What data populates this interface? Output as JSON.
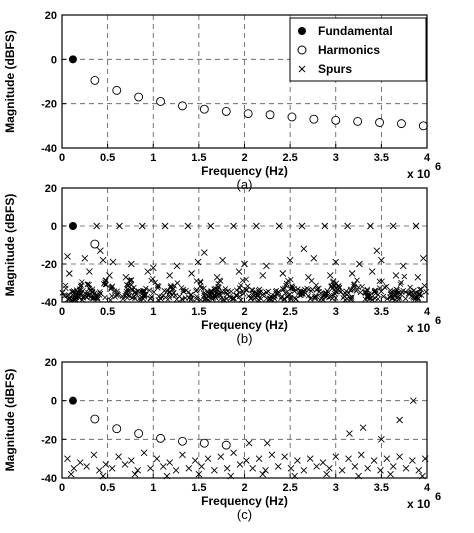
{
  "legend": {
    "fundamental": "Fundamental",
    "harmonics": "Harmonics",
    "spurs": "Spurs"
  },
  "chart_data": [
    {
      "type": "scatter",
      "caption": "(a)",
      "xlabel": "Frequency (Hz)",
      "ylabel": "Magnitude (dBFS)",
      "x_multiplier_label": "x 10",
      "x_multiplier_exp": "6",
      "xlim": [
        0,
        4000000
      ],
      "ylim": [
        -40,
        20
      ],
      "xticks": [
        0,
        500000,
        1000000,
        1500000,
        2000000,
        2500000,
        3000000,
        3500000,
        4000000
      ],
      "xtick_labels": [
        "0",
        "0.5",
        "1",
        "1.5",
        "2",
        "2.5",
        "3",
        "3.5",
        "4"
      ],
      "yticks": [
        -40,
        -20,
        0,
        20
      ],
      "ytick_labels": [
        "-40",
        "-20",
        "0",
        "20"
      ],
      "grid": true,
      "legend_position": "top-right",
      "series": [
        {
          "marker": "filled-circle",
          "x": [
            120000
          ],
          "y": [
            0
          ]
        },
        {
          "marker": "open-circle",
          "x": [
            360000,
            600000,
            840000,
            1080000,
            1320000,
            1560000,
            1800000,
            2040000,
            2280000,
            2520000,
            2760000,
            3000000,
            3240000,
            3480000,
            3720000,
            3960000
          ],
          "y": [
            -9.5,
            -14,
            -17,
            -19,
            -21,
            -22.5,
            -23.5,
            -24.5,
            -25,
            -26,
            -27,
            -27.5,
            -28,
            -28.5,
            -29,
            -30
          ]
        },
        {
          "marker": "cross",
          "x": [],
          "y": []
        }
      ]
    },
    {
      "type": "scatter",
      "caption": "(b)",
      "xlabel": "Frequency (Hz)",
      "ylabel": "Magnitude (dBFS)",
      "x_multiplier_label": "x 10",
      "x_multiplier_exp": "6",
      "xlim": [
        0,
        4000000
      ],
      "ylim": [
        -40,
        20
      ],
      "xticks": [
        0,
        500000,
        1000000,
        1500000,
        2000000,
        2500000,
        3000000,
        3500000,
        4000000
      ],
      "xtick_labels": [
        "0",
        "0.5",
        "1",
        "1.5",
        "2",
        "2.5",
        "3",
        "3.5",
        "4"
      ],
      "yticks": [
        -40,
        -20,
        0,
        20
      ],
      "ytick_labels": [
        "-40",
        "-20",
        "0",
        "20"
      ],
      "grid": true,
      "series": [
        {
          "marker": "filled-circle",
          "x": [
            120000
          ],
          "y": [
            0
          ]
        },
        {
          "marker": "open-circle",
          "x": [
            360000
          ],
          "y": [
            -9.5
          ]
        },
        {
          "marker": "cross",
          "x": [
            380000,
            630000,
            880000,
            1130000,
            1380000,
            1630000,
            1880000,
            2130000,
            2380000,
            2630000,
            2880000,
            3130000,
            3380000,
            3630000,
            3880000,
            420000,
            1560000,
            2650000,
            3450000,
            60000,
            250000,
            450000,
            560000,
            760000,
            1000000,
            1260000,
            1490000,
            1760000,
            2000000,
            2240000,
            2500000,
            2760000,
            3000000,
            3260000,
            3500000,
            3740000,
            3960000,
            80000,
            300000,
            520000,
            700000,
            940000,
            1180000,
            1420000,
            1700000,
            1940000,
            2200000,
            2420000,
            2700000,
            2940000,
            3180000,
            3400000,
            3660000,
            3900000
          ],
          "y": [
            0,
            0,
            0,
            0,
            0,
            0,
            0,
            0,
            0,
            0,
            0,
            0,
            0,
            0,
            0,
            -13,
            -14,
            -12,
            -13,
            -16,
            -17,
            -18,
            -19,
            -20,
            -22,
            -21,
            -19,
            -18,
            -20,
            -21,
            -18,
            -17,
            -19,
            -20,
            -18,
            -21,
            -17,
            -25,
            -24,
            -26,
            -27,
            -24,
            -26,
            -25,
            -27,
            -24,
            -26,
            -25,
            -27,
            -26,
            -25,
            -24,
            -26,
            -27
          ],
          "floor_spurs": {
            "min_db": -40,
            "max_db": -26,
            "description": "dense band of spurs"
          }
        }
      ]
    },
    {
      "type": "scatter",
      "caption": "(c)",
      "xlabel": "Frequency (Hz)",
      "ylabel": "Magnitude (dBFS)",
      "x_multiplier_label": "x 10",
      "x_multiplier_exp": "6",
      "xlim": [
        0,
        4000000
      ],
      "ylim": [
        -40,
        20
      ],
      "xticks": [
        0,
        500000,
        1000000,
        1500000,
        2000000,
        2500000,
        3000000,
        3500000,
        4000000
      ],
      "xtick_labels": [
        "0",
        "0.5",
        "1",
        "1.5",
        "2",
        "2.5",
        "3",
        "3.5",
        "4"
      ],
      "yticks": [
        -40,
        -20,
        0,
        20
      ],
      "ytick_labels": [
        "-40",
        "-20",
        "0",
        "20"
      ],
      "grid": true,
      "series": [
        {
          "marker": "filled-circle",
          "x": [
            120000
          ],
          "y": [
            0
          ]
        },
        {
          "marker": "open-circle",
          "x": [
            360000,
            600000,
            840000,
            1080000,
            1320000,
            1560000,
            1800000
          ],
          "y": [
            -9.5,
            -14.5,
            -17,
            -19.5,
            -21,
            -22,
            -23
          ]
        },
        {
          "marker": "cross",
          "x": [
            3850000,
            3700000,
            3150000,
            3300000,
            3500000,
            2050000,
            2250000,
            60000,
            200000,
            350000,
            480000,
            620000,
            760000,
            900000,
            1040000,
            1180000,
            1320000,
            1460000,
            1600000,
            1740000,
            1880000,
            2020000,
            2160000,
            2300000,
            2440000,
            2580000,
            2720000,
            2860000,
            3000000,
            3140000,
            3280000,
            3420000,
            3560000,
            3700000,
            3840000,
            3980000,
            130000,
            270000,
            410000,
            550000,
            690000,
            830000,
            970000,
            1110000,
            1250000,
            1390000,
            1530000,
            1670000,
            1810000,
            1950000,
            2090000,
            2230000,
            2370000,
            2510000,
            2650000,
            2790000,
            2930000,
            3070000,
            3210000,
            3350000,
            3490000,
            3630000,
            3770000,
            3910000,
            100000,
            450000,
            800000,
            1150000,
            1500000,
            1850000,
            2200000,
            2550000,
            2900000,
            3250000,
            3600000,
            3950000
          ],
          "y": [
            0,
            -10,
            -17,
            -14,
            -20,
            -22,
            -22,
            -30,
            -32,
            -28,
            -33,
            -29,
            -31,
            -27,
            -30,
            -32,
            -28,
            -31,
            -30,
            -29,
            -27,
            -31,
            -30,
            -28,
            -29,
            -31,
            -30,
            -32,
            -29,
            -30,
            -28,
            -31,
            -30,
            -29,
            -31,
            -30,
            -35,
            -34,
            -36,
            -35,
            -33,
            -36,
            -35,
            -34,
            -36,
            -35,
            -34,
            -36,
            -35,
            -33,
            -35,
            -36,
            -34,
            -35,
            -36,
            -34,
            -35,
            -36,
            -34,
            -35,
            -36,
            -34,
            -35,
            -36,
            -38,
            -39,
            -38,
            -39,
            -38,
            -39,
            -38,
            -39,
            -38,
            -39,
            -38,
            -39
          ]
        }
      ]
    }
  ]
}
